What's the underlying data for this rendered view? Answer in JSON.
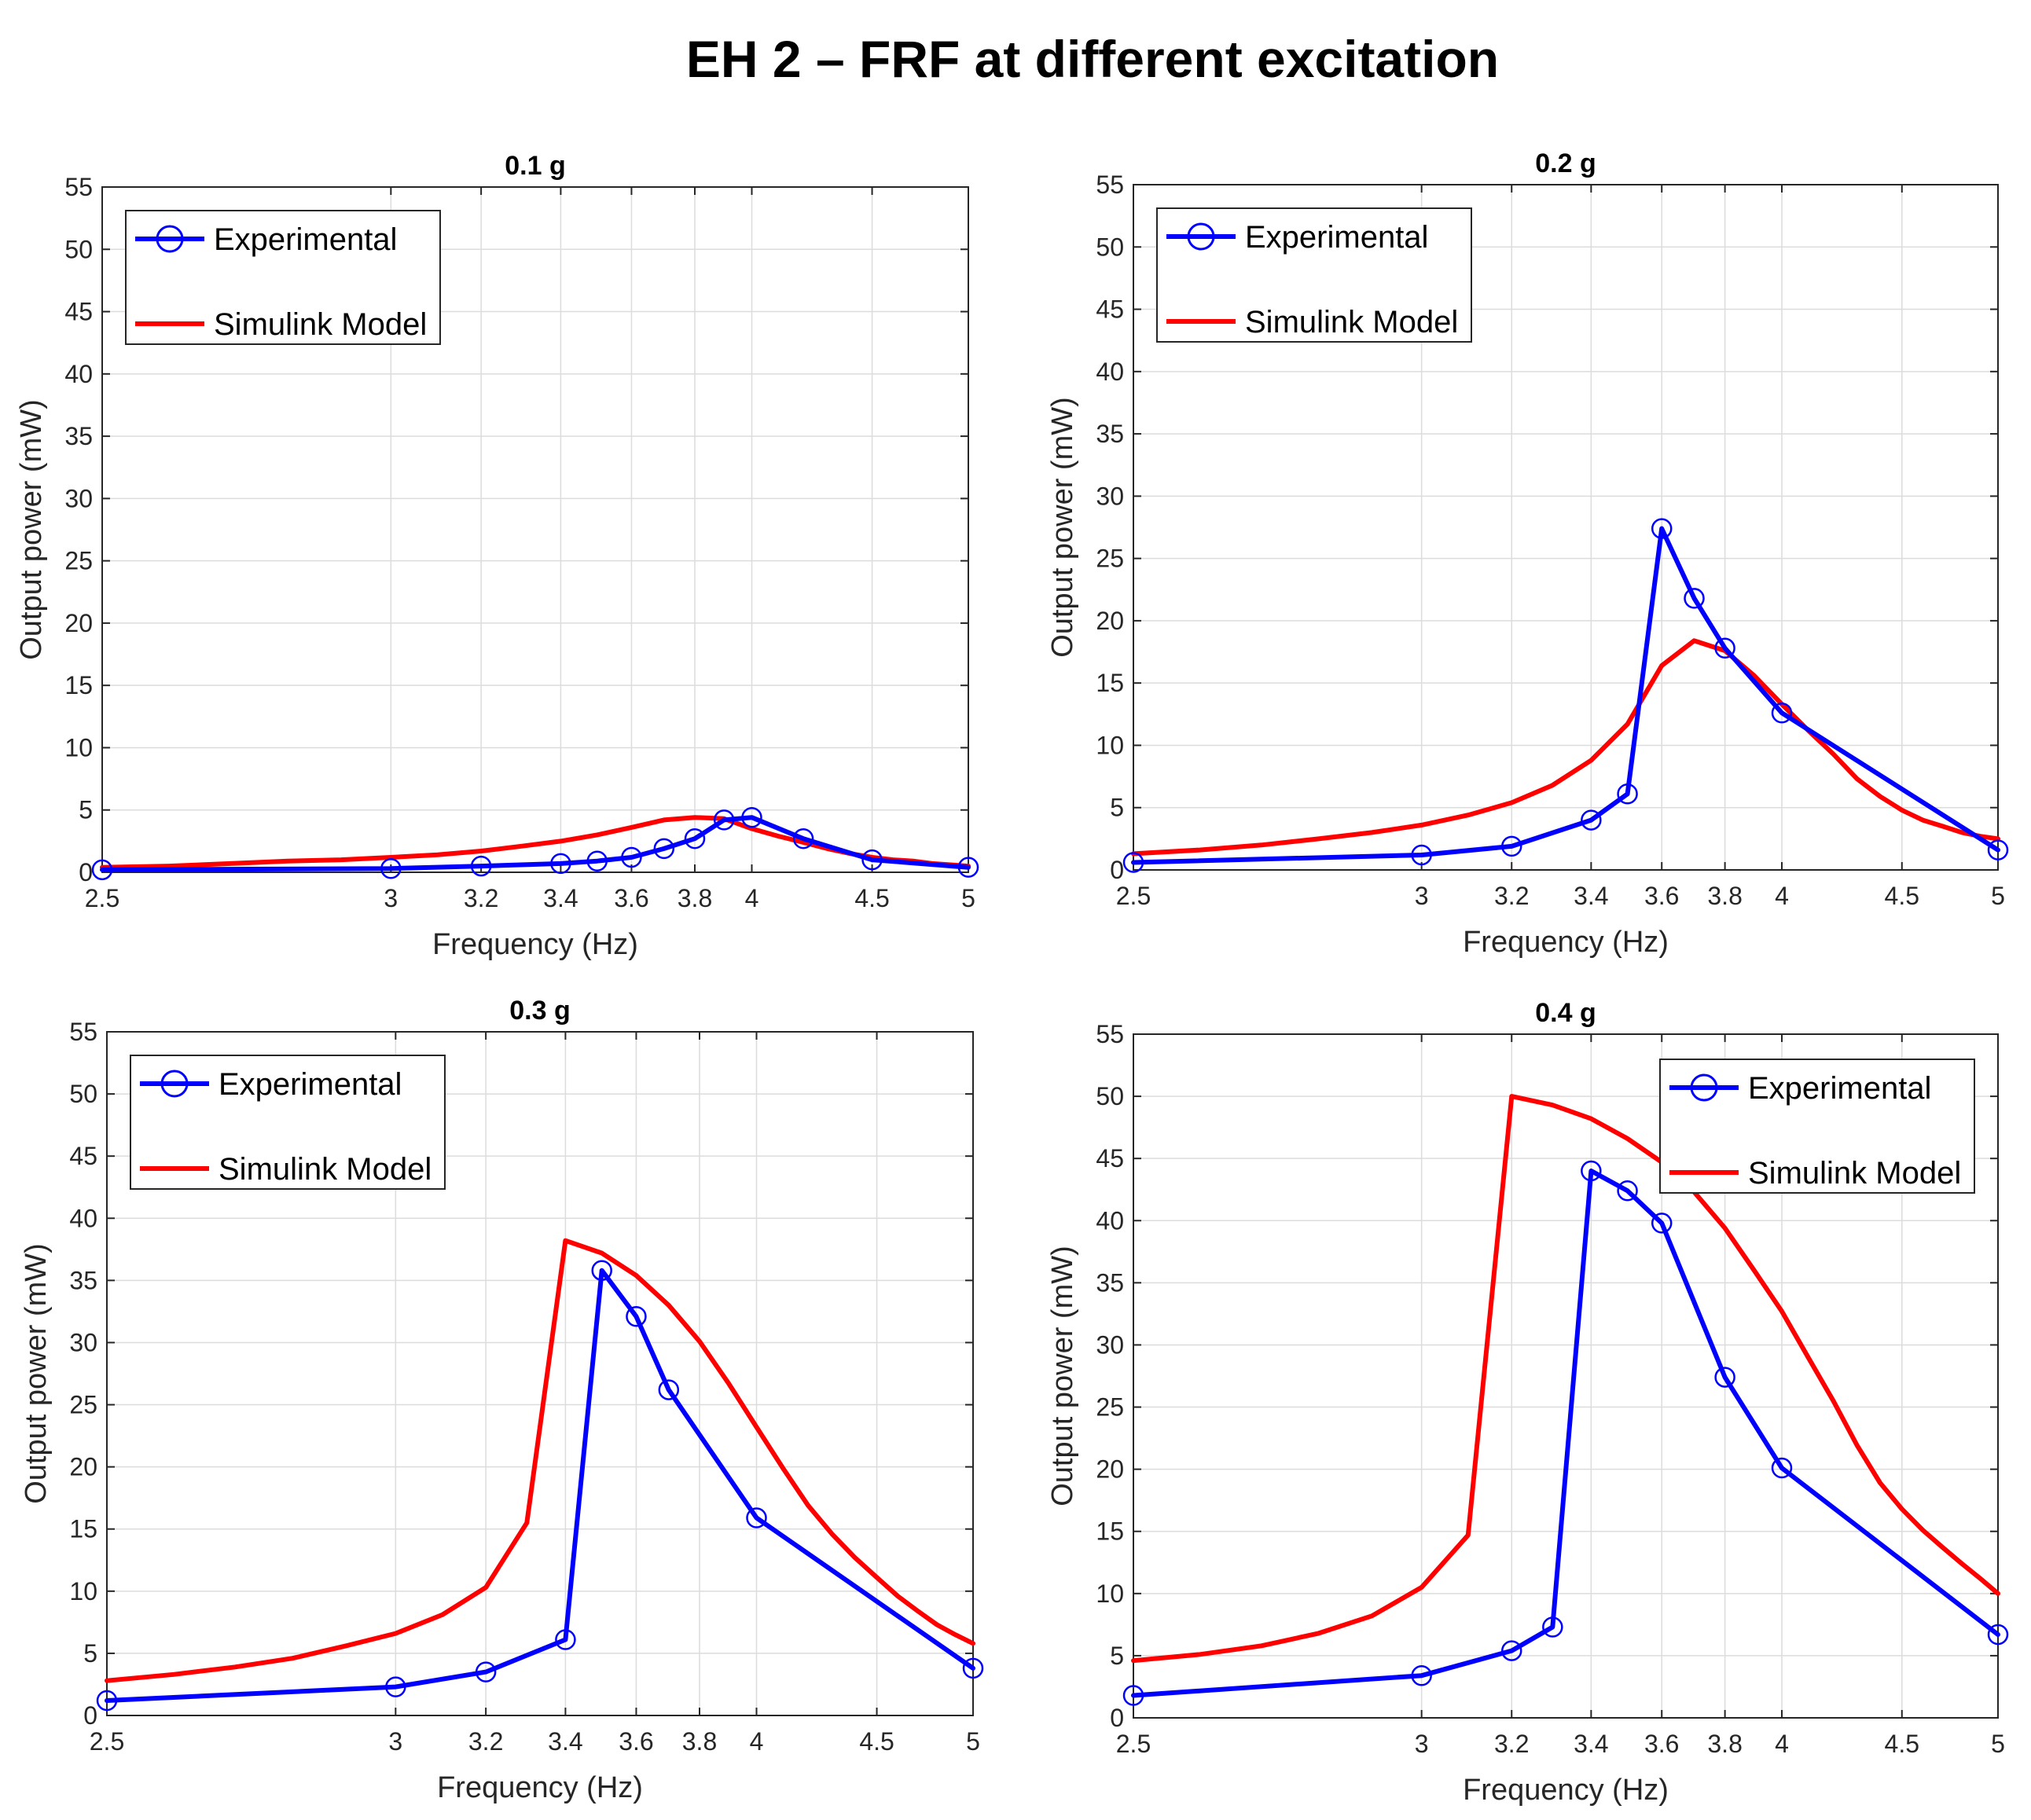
{
  "title": "EH 2 – FRF at different excitation",
  "colors": {
    "experimental": "#0000ff",
    "model": "#ff0000",
    "grid": "#dcdcdc",
    "axis": "#262626"
  },
  "chart_data": [
    {
      "type": "line",
      "title": "0.1 g",
      "xlabel": "Frequency (Hz)",
      "ylabel": "Output power (mW)",
      "xlim": [
        2.5,
        5
      ],
      "ylim": [
        0,
        55
      ],
      "x_scale": "reciprocal",
      "xticks": [
        2.5,
        3,
        3.2,
        3.4,
        3.6,
        3.8,
        4,
        4.5,
        5
      ],
      "yticks": [
        0,
        5,
        10,
        15,
        20,
        25,
        30,
        35,
        40,
        45,
        50,
        55
      ],
      "grid": true,
      "legend_position": "top-left",
      "series": [
        {
          "name": "Experimental",
          "marker": "circle",
          "x": [
            2.5,
            3.0,
            3.2,
            3.4,
            3.5,
            3.6,
            3.7,
            3.8,
            3.9,
            4.0,
            4.2,
            4.5,
            5.0
          ],
          "y": [
            0.2,
            0.3,
            0.5,
            0.7,
            0.9,
            1.2,
            1.9,
            2.7,
            4.2,
            4.4,
            2.7,
            1.0,
            0.4
          ]
        },
        {
          "name": "Simulink Model",
          "marker": "none",
          "x": [
            2.5,
            2.6,
            2.7,
            2.8,
            2.9,
            3.0,
            3.1,
            3.2,
            3.3,
            3.4,
            3.5,
            3.6,
            3.7,
            3.8,
            3.9,
            4.0,
            4.1,
            4.2,
            4.3,
            4.4,
            4.5,
            4.6,
            4.7,
            4.8,
            4.9,
            5.0
          ],
          "y": [
            0.4,
            0.5,
            0.7,
            0.9,
            1.0,
            1.2,
            1.4,
            1.7,
            2.1,
            2.5,
            3.0,
            3.6,
            4.2,
            4.4,
            4.3,
            3.5,
            2.9,
            2.4,
            1.9,
            1.5,
            1.2,
            1.0,
            0.9,
            0.7,
            0.6,
            0.5
          ]
        }
      ]
    },
    {
      "type": "line",
      "title": "0.2 g",
      "xlabel": "Frequency (Hz)",
      "ylabel": "Output power (mW)",
      "xlim": [
        2.5,
        5
      ],
      "ylim": [
        0,
        55
      ],
      "x_scale": "reciprocal",
      "xticks": [
        2.5,
        3,
        3.2,
        3.4,
        3.6,
        3.8,
        4,
        4.5,
        5
      ],
      "yticks": [
        0,
        5,
        10,
        15,
        20,
        25,
        30,
        35,
        40,
        45,
        50,
        55
      ],
      "grid": true,
      "legend_position": "top-left",
      "series": [
        {
          "name": "Experimental",
          "marker": "circle",
          "x": [
            2.5,
            3.0,
            3.2,
            3.4,
            3.5,
            3.6,
            3.7,
            3.8,
            4.0,
            5.0
          ],
          "y": [
            0.6,
            1.2,
            1.9,
            4.0,
            6.1,
            27.4,
            21.8,
            17.8,
            12.6,
            1.6
          ]
        },
        {
          "name": "Simulink Model",
          "marker": "none",
          "x": [
            2.5,
            2.6,
            2.7,
            2.8,
            2.9,
            3.0,
            3.1,
            3.2,
            3.3,
            3.4,
            3.5,
            3.6,
            3.7,
            3.8,
            3.9,
            4.0,
            4.1,
            4.2,
            4.3,
            4.4,
            4.5,
            4.6,
            4.7,
            4.8,
            4.9,
            5.0
          ],
          "y": [
            1.3,
            1.6,
            2.0,
            2.5,
            3.0,
            3.6,
            4.4,
            5.4,
            6.8,
            8.8,
            11.7,
            16.4,
            18.4,
            17.6,
            15.6,
            13.3,
            11.2,
            9.3,
            7.3,
            5.9,
            4.8,
            4.0,
            3.5,
            3.0,
            2.7,
            2.5
          ]
        }
      ]
    },
    {
      "type": "line",
      "title": "0.3 g",
      "xlabel": "Frequency (Hz)",
      "ylabel": "Output power (mW)",
      "xlim": [
        2.5,
        5
      ],
      "ylim": [
        0,
        55
      ],
      "x_scale": "reciprocal",
      "xticks": [
        2.5,
        3,
        3.2,
        3.4,
        3.6,
        3.8,
        4,
        4.5,
        5
      ],
      "yticks": [
        0,
        5,
        10,
        15,
        20,
        25,
        30,
        35,
        40,
        45,
        50,
        55
      ],
      "grid": true,
      "legend_position": "top-left",
      "series": [
        {
          "name": "Experimental",
          "marker": "circle",
          "x": [
            2.5,
            3.0,
            3.2,
            3.4,
            3.5,
            3.6,
            3.7,
            4.0,
            5.0
          ],
          "y": [
            1.2,
            2.3,
            3.5,
            6.1,
            35.8,
            32.1,
            26.2,
            15.9,
            3.8
          ]
        },
        {
          "name": "Simulink Model",
          "marker": "none",
          "x": [
            2.5,
            2.6,
            2.7,
            2.8,
            2.9,
            3.0,
            3.1,
            3.2,
            3.3,
            3.4,
            3.5,
            3.6,
            3.7,
            3.8,
            3.9,
            4.0,
            4.1,
            4.2,
            4.3,
            4.4,
            4.5,
            4.6,
            4.7,
            4.8,
            4.9,
            5.0
          ],
          "y": [
            2.8,
            3.3,
            3.9,
            4.6,
            5.6,
            6.6,
            8.1,
            10.3,
            15.5,
            38.2,
            37.2,
            35.4,
            33.0,
            30.1,
            26.7,
            23.2,
            19.9,
            16.9,
            14.6,
            12.7,
            11.1,
            9.6,
            8.4,
            7.3,
            6.5,
            5.8
          ]
        }
      ]
    },
    {
      "type": "line",
      "title": "0.4 g",
      "xlabel": "Frequency (Hz)",
      "ylabel": "Output power (mW)",
      "xlim": [
        2.5,
        5
      ],
      "ylim": [
        0,
        55
      ],
      "x_scale": "reciprocal",
      "xticks": [
        2.5,
        3,
        3.2,
        3.4,
        3.6,
        3.8,
        4,
        4.5,
        5
      ],
      "yticks": [
        0,
        5,
        10,
        15,
        20,
        25,
        30,
        35,
        40,
        45,
        50,
        55
      ],
      "grid": true,
      "legend_position": "top-right",
      "series": [
        {
          "name": "Experimental",
          "marker": "circle",
          "x": [
            2.5,
            3.0,
            3.2,
            3.3,
            3.4,
            3.5,
            3.6,
            3.8,
            4.0,
            5.0
          ],
          "y": [
            1.8,
            3.4,
            5.4,
            7.3,
            44.0,
            42.4,
            39.8,
            27.4,
            20.1,
            6.7
          ]
        },
        {
          "name": "Simulink Model",
          "marker": "none",
          "x": [
            2.5,
            2.6,
            2.7,
            2.8,
            2.9,
            3.0,
            3.1,
            3.2,
            3.3,
            3.4,
            3.5,
            3.6,
            3.7,
            3.8,
            3.9,
            4.0,
            4.1,
            4.2,
            4.3,
            4.4,
            4.5,
            4.6,
            4.7,
            4.8,
            4.9,
            5.0
          ],
          "y": [
            4.6,
            5.1,
            5.8,
            6.8,
            8.2,
            10.5,
            14.7,
            50.0,
            49.3,
            48.2,
            46.6,
            44.7,
            42.3,
            39.4,
            36.0,
            32.7,
            29.0,
            25.5,
            21.9,
            18.9,
            16.8,
            15.1,
            13.7,
            12.4,
            11.2,
            10.0
          ]
        }
      ]
    }
  ]
}
